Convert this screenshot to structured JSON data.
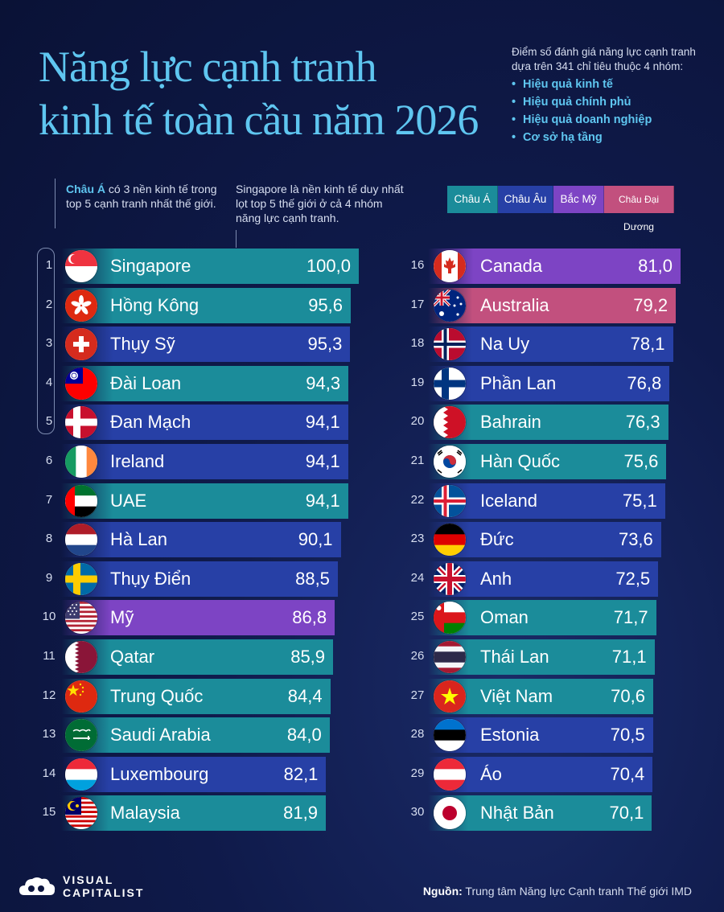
{
  "title": {
    "line1": "Năng lực cạnh tranh",
    "line2": "kinh tế toàn cầu năm 2026"
  },
  "description": {
    "intro": "Điểm số đánh giá năng lực cạnh tranh dựa trên 341 chỉ tiêu thuộc 4 nhóm:",
    "items": [
      "Hiệu quả kinh tế",
      "Hiệu quả chính phủ",
      "Hiệu quả doanh nghiệp",
      "Cơ sở hạ tầng"
    ]
  },
  "note_asia": {
    "highlight": "Châu Á",
    "text": " có 3 nền kinh tế trong top 5 cạnh tranh nhất thế giới."
  },
  "note_singapore": "Singapore là nền kinh tế duy nhất lọt top 5 thế giới ở cả 4 nhóm năng lực cạnh tranh.",
  "legend": [
    {
      "label": "Châu Á",
      "color": "#1b8c9a"
    },
    {
      "label": "Châu Âu",
      "color": "#2740a6"
    },
    {
      "label": "Bắc Mỹ",
      "color": "#7d44c4"
    },
    {
      "label": "Châu Đại Dương",
      "color": "#c2507e"
    }
  ],
  "region_colors": {
    "asia": "#1b8c9a",
    "europe": "#2740a6",
    "namerica": "#7d44c4",
    "oceania": "#c2507e"
  },
  "chart_data": {
    "type": "bar",
    "categories": [
      "Singapore",
      "Hồng Kông",
      "Thụy Sỹ",
      "Đài Loan",
      "Đan Mạch",
      "Ireland",
      "UAE",
      "Hà Lan",
      "Thụy Điển",
      "Mỹ",
      "Qatar",
      "Trung Quốc",
      "Saudi Arabia",
      "Luxembourg",
      "Malaysia",
      "Canada",
      "Australia",
      "Na Uy",
      "Phần Lan",
      "Bahrain",
      "Hàn Quốc",
      "Iceland",
      "Đức",
      "Anh",
      "Oman",
      "Thái Lan",
      "Việt Nam",
      "Estonia",
      "Áo",
      "Nhật Bản"
    ],
    "values": [
      100.0,
      95.6,
      95.3,
      94.3,
      94.1,
      94.1,
      94.1,
      90.1,
      88.5,
      86.8,
      85.9,
      84.4,
      84.0,
      82.1,
      81.9,
      81.0,
      79.2,
      78.1,
      76.8,
      76.3,
      75.6,
      75.1,
      73.6,
      72.5,
      71.7,
      71.1,
      70.6,
      70.5,
      70.4,
      70.1
    ],
    "labels": [
      "100,0",
      "95,6",
      "95,3",
      "94,3",
      "94,1",
      "94,1",
      "94,1",
      "90,1",
      "88,5",
      "86,8",
      "85,9",
      "84,4",
      "84,0",
      "82,1",
      "81,9",
      "81,0",
      "79,2",
      "78,1",
      "76,8",
      "76,3",
      "75,6",
      "75,1",
      "73,6",
      "72,5",
      "71,7",
      "71,1",
      "70,6",
      "70,5",
      "70,4",
      "70,1"
    ],
    "ranks": [
      "1",
      "2",
      "3",
      "4",
      "5",
      "6",
      "7",
      "8",
      "9",
      "10",
      "11",
      "12",
      "13",
      "14",
      "15",
      "16",
      "17",
      "18",
      "19",
      "20",
      "21",
      "22",
      "23",
      "24",
      "25",
      "26",
      "27",
      "28",
      "29",
      "30"
    ],
    "regions": [
      "asia",
      "asia",
      "europe",
      "asia",
      "europe",
      "europe",
      "asia",
      "europe",
      "europe",
      "namerica",
      "asia",
      "asia",
      "asia",
      "europe",
      "asia",
      "namerica",
      "oceania",
      "europe",
      "europe",
      "asia",
      "asia",
      "europe",
      "europe",
      "europe",
      "asia",
      "asia",
      "asia",
      "europe",
      "europe",
      "asia"
    ],
    "flags": [
      "singapore-flag-icon",
      "hong-kong-flag-icon",
      "switzerland-flag-icon",
      "taiwan-flag-icon",
      "denmark-flag-icon",
      "ireland-flag-icon",
      "uae-flag-icon",
      "netherlands-flag-icon",
      "sweden-flag-icon",
      "usa-flag-icon",
      "qatar-flag-icon",
      "china-flag-icon",
      "saudi-arabia-flag-icon",
      "luxembourg-flag-icon",
      "malaysia-flag-icon",
      "canada-flag-icon",
      "australia-flag-icon",
      "norway-flag-icon",
      "finland-flag-icon",
      "bahrain-flag-icon",
      "south-korea-flag-icon",
      "iceland-flag-icon",
      "germany-flag-icon",
      "uk-flag-icon",
      "oman-flag-icon",
      "thailand-flag-icon",
      "vietnam-flag-icon",
      "estonia-flag-icon",
      "austria-flag-icon",
      "japan-flag-icon"
    ]
  },
  "footer": {
    "logo_top": "VISUAL",
    "logo_bottom": "CAPITALIST",
    "source_label": "Nguồn:",
    "source_text": " Trung tâm Năng lực Cạnh tranh Thế giới IMD"
  }
}
